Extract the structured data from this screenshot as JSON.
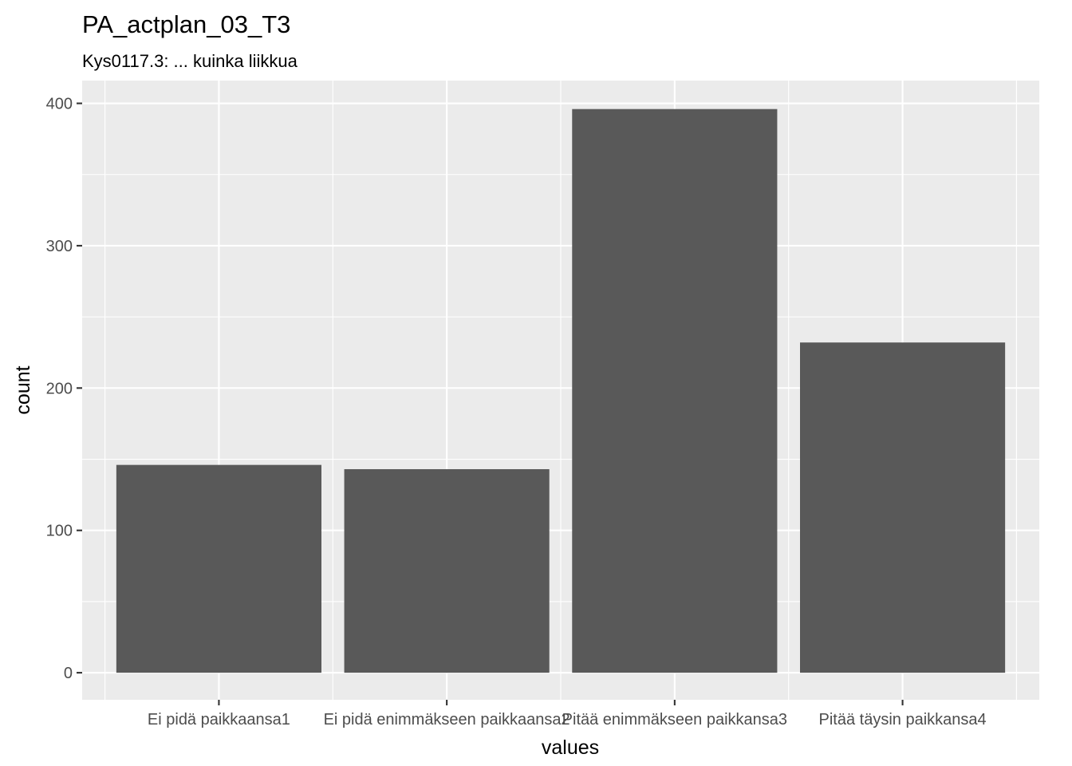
{
  "chart_data": {
    "type": "bar",
    "title": "PA_actplan_03_T3",
    "subtitle": "Kys0117.3: ... kuinka liikkua",
    "xlabel": "values",
    "ylabel": "count",
    "categories": [
      "Ei pidä paikkaansa1",
      "Ei pidä enimmäkseen paikkaansa2",
      "Pitää enimmäkseen paikkansa3",
      "Pitää täysin paikkansa4"
    ],
    "values": [
      146,
      143,
      396,
      232
    ],
    "ylim": [
      -19,
      416
    ],
    "yticks": [
      0,
      100,
      200,
      300,
      400
    ],
    "grid": true,
    "colors": {
      "panel": "#ebebeb",
      "grid": "#ffffff",
      "bar": "#595959",
      "tick": "#333333"
    }
  }
}
